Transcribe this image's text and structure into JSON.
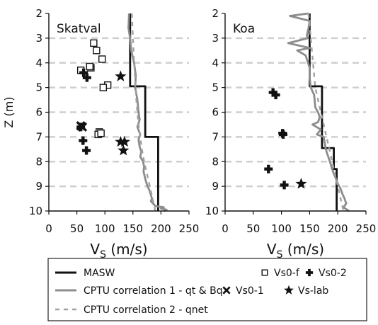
{
  "chart_data": [
    {
      "type": "line",
      "title": "Skatval",
      "xlabel": "V",
      "xlabel_sub": "S",
      "xlabel_unit": " (m/s)",
      "ylabel": "Z (m)",
      "xlim": [
        0,
        250
      ],
      "ylim": [
        10,
        2
      ],
      "y_inverted": true,
      "xticks": [
        0,
        50,
        100,
        150,
        200,
        250
      ],
      "yticks": [
        2,
        3,
        4,
        5,
        6,
        7,
        8,
        9,
        10
      ],
      "grid": "horizontal dashed",
      "series": [
        {
          "name": "MASW",
          "kind": "step",
          "color": "#111111",
          "x": [
            145,
            145,
            172,
            172,
            195,
            195
          ],
          "y": [
            2,
            4.95,
            4.95,
            7.0,
            7.0,
            10
          ]
        },
        {
          "name": "CPTU correlation 1 - qt & Bq",
          "kind": "line",
          "color": "#8c8c8c",
          "x": [
            143,
            142,
            145,
            147,
            152,
            155,
            154,
            158,
            160,
            162,
            158,
            163,
            160,
            162,
            165,
            163,
            168,
            170,
            169,
            172,
            176,
            180,
            184,
            182,
            186,
            190,
            205,
            200,
            210,
            205
          ],
          "y": [
            2,
            2.6,
            3.0,
            3.5,
            4.0,
            4.5,
            5.0,
            5.5,
            6.0,
            6.3,
            6.6,
            6.9,
            7.1,
            7.4,
            7.6,
            7.8,
            8.0,
            8.2,
            8.4,
            8.7,
            9.0,
            9.2,
            9.5,
            9.6,
            9.7,
            9.8,
            9.85,
            9.9,
            9.95,
            10
          ]
        },
        {
          "name": "CPTU correlation 2 - qnet",
          "kind": "dashed",
          "color": "#a0a0a0",
          "x": [
            148,
            150,
            152,
            155,
            156,
            158,
            160,
            163,
            166,
            170,
            175,
            180,
            185,
            190
          ],
          "y": [
            2,
            3.0,
            4.0,
            5.0,
            5.5,
            6.0,
            6.5,
            7.0,
            7.5,
            8.0,
            8.5,
            9.0,
            9.5,
            10
          ]
        },
        {
          "name": "Vs0-f",
          "kind": "marker",
          "marker": "square",
          "x": [
            80,
            85,
            95,
            57,
            75,
            73,
            105,
            97,
            90,
            88,
            93
          ],
          "y": [
            3.2,
            3.5,
            3.85,
            4.3,
            4.2,
            4.15,
            4.9,
            5.0,
            6.8,
            6.9,
            6.85
          ]
        },
        {
          "name": "Vs0-2",
          "kind": "marker",
          "marker": "plus",
          "x": [
            62,
            68,
            57,
            61,
            67
          ],
          "y": [
            4.4,
            4.6,
            6.6,
            7.15,
            7.55
          ]
        },
        {
          "name": "Vs0-1",
          "kind": "marker",
          "marker": "cross",
          "x": [
            57,
            60
          ],
          "y": [
            6.55,
            6.6
          ]
        },
        {
          "name": "Vs-lab",
          "kind": "marker",
          "marker": "star",
          "x": [
            128,
            128,
            135,
            133
          ],
          "y": [
            4.55,
            7.2,
            7.2,
            7.55
          ]
        }
      ]
    },
    {
      "type": "line",
      "title": "Koa",
      "xlabel": "V",
      "xlabel_sub": "S",
      "xlabel_unit": " (m/s)",
      "xlim": [
        0,
        250
      ],
      "ylim": [
        10,
        2
      ],
      "y_inverted": true,
      "xticks": [
        0,
        50,
        100,
        150,
        200,
        250
      ],
      "yticks": [
        2,
        3,
        4,
        5,
        6,
        7,
        8,
        9,
        10
      ],
      "grid": "horizontal dashed",
      "series": [
        {
          "name": "MASW",
          "kind": "step",
          "color": "#111111",
          "x": [
            150,
            150,
            172,
            172,
            193,
            193,
            198,
            198
          ],
          "y": [
            2,
            4.95,
            4.95,
            7.45,
            7.45,
            8.3,
            8.3,
            10
          ]
        },
        {
          "name": "CPTU correlation 1 - qt & Bq",
          "kind": "line",
          "color": "#8c8c8c",
          "x": [
            148,
            115,
            150,
            148,
            145,
            147,
            112,
            150,
            128,
            143,
            150,
            150,
            152,
            158,
            160,
            165,
            168,
            165,
            155,
            170,
            163,
            175,
            178,
            180,
            183,
            186,
            190,
            193,
            197,
            200,
            205,
            208,
            212,
            215,
            210,
            220
          ],
          "y": [
            2,
            2.1,
            2.3,
            2.6,
            2.9,
            3.0,
            3.2,
            3.4,
            3.5,
            3.7,
            4.2,
            4.6,
            5.0,
            5.3,
            5.8,
            6.0,
            6.2,
            6.4,
            6.5,
            6.7,
            6.9,
            7.0,
            7.4,
            7.6,
            7.8,
            8.0,
            8.3,
            8.5,
            8.7,
            8.9,
            9.1,
            9.3,
            9.5,
            9.7,
            9.85,
            10
          ]
        },
        {
          "name": "CPTU correlation 2 - qnet",
          "kind": "dashed",
          "color": "#a0a0a0",
          "x": [
            148,
            152,
            156,
            160,
            165,
            170,
            175,
            180,
            185,
            190,
            195,
            200,
            205,
            210
          ],
          "y": [
            2,
            3.0,
            4.0,
            5.0,
            5.5,
            6.0,
            6.5,
            7.0,
            7.5,
            8.0,
            8.5,
            9.0,
            9.5,
            10
          ]
        },
        {
          "name": "Vs0-2",
          "kind": "marker",
          "marker": "plus",
          "x": [
            85,
            90,
            102,
            103,
            77,
            105
          ],
          "y": [
            5.2,
            5.3,
            6.85,
            6.9,
            8.3,
            8.95
          ]
        },
        {
          "name": "Vs-lab",
          "kind": "marker",
          "marker": "star",
          "x": [
            135
          ],
          "y": [
            8.9
          ]
        }
      ]
    }
  ],
  "legend": {
    "placement": "bottom",
    "entries": [
      {
        "label": "MASW",
        "symbol": "solid-black-line"
      },
      {
        "label": "CPTU correlation 1 - qt & Bq",
        "symbol": "solid-gray-line"
      },
      {
        "label": "CPTU correlation 2 - qnet",
        "symbol": "dashed-gray-line"
      },
      {
        "label": "Vs0-f",
        "symbol": "square"
      },
      {
        "label": "Vs0-2",
        "symbol": "plus"
      },
      {
        "label": "Vs0-1",
        "symbol": "cross"
      },
      {
        "label": "Vs-lab",
        "symbol": "star"
      }
    ]
  }
}
